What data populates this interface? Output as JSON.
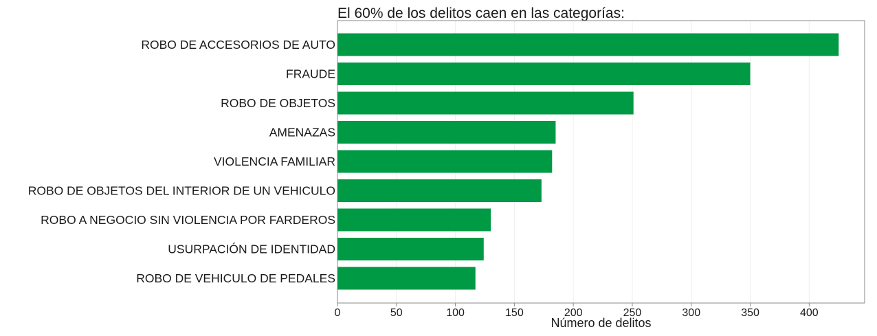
{
  "chart_data": {
    "type": "bar",
    "orientation": "horizontal",
    "title": "El 60% de los delitos caen en las categorías:",
    "xlabel": "Número de delitos",
    "ylabel": "",
    "categories": [
      "ROBO DE ACCESORIOS DE AUTO",
      "FRAUDE",
      "ROBO DE OBJETOS",
      "AMENAZAS",
      "VIOLENCIA FAMILIAR",
      "ROBO DE OBJETOS DEL INTERIOR DE UN VEHICULO",
      "ROBO A NEGOCIO SIN VIOLENCIA POR FARDEROS",
      "USURPACIÓN DE IDENTIDAD",
      "ROBO DE VEHICULO DE PEDALES"
    ],
    "values": [
      425,
      350,
      251,
      185,
      182,
      173,
      130,
      124,
      117
    ],
    "xlim": [
      0,
      447
    ],
    "xticks": [
      0,
      50,
      100,
      150,
      200,
      250,
      300,
      350,
      400
    ],
    "xtick_labels": [
      "0",
      "50",
      "100",
      "150",
      "200",
      "250",
      "300",
      "350",
      "400"
    ],
    "grid": "vertical",
    "legend": "none",
    "bar_color": "#009944",
    "frame_color": "#888888",
    "grid_color": "#eeeeee"
  }
}
